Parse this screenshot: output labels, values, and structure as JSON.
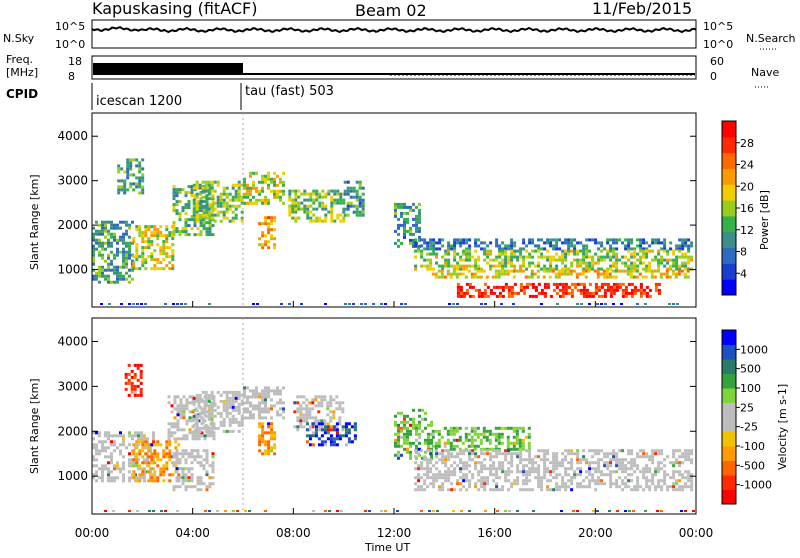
{
  "header": {
    "station": "Kapuskasing (fitACF)",
    "beam": "Beam 02",
    "date": "11/Feb/2015"
  },
  "nsky_panel": {
    "left_label": "N.Sky",
    "left_ticks": [
      "10^5",
      "10^0"
    ],
    "right_ticks": [
      "10^5",
      "10^0"
    ],
    "right_label": "N.Search"
  },
  "freq_panel": {
    "left_label_1": "Freq.",
    "left_label_2": "[MHz]",
    "left_ticks": [
      "18",
      "8"
    ],
    "right_ticks": [
      "60",
      "0"
    ],
    "right_label": "Nave"
  },
  "cpid": {
    "label": "CPID",
    "segments": [
      {
        "name": "icescan 1200",
        "start_hour": 0,
        "end_hour": 6
      },
      {
        "name": "tau (fast) 503",
        "start_hour": 6,
        "end_hour": 24
      }
    ]
  },
  "chart_data": [
    {
      "type": "heatmap",
      "name": "power",
      "ylabel": "Slant Range [km]",
      "ylim": [
        180,
        4500
      ],
      "y_ticks": [
        "1000",
        "2000",
        "3000",
        "4000"
      ],
      "xlabel": "Time UT",
      "x_ticks": [
        "00:00",
        "04:00",
        "08:00",
        "12:00",
        "16:00",
        "20:00",
        "00:00"
      ],
      "xlim_hours": [
        0,
        24
      ],
      "colorbar": {
        "label": "Power [dB]",
        "range": [
          0,
          30
        ],
        "ticks": [
          "4",
          "8",
          "12",
          "16",
          "20",
          "24",
          "28"
        ],
        "colors": [
          "#0000ff",
          "#1a3fd0",
          "#2f6bc0",
          "#3a8f8a",
          "#36b04a",
          "#9acc1c",
          "#f2cc00",
          "#fb9b00",
          "#ff6a00",
          "#ff2a00",
          "#ff0000"
        ]
      },
      "regions": [
        {
          "t": [
            0.0,
            1.6
          ],
          "r": [
            700,
            2100
          ],
          "level": 11
        },
        {
          "t": [
            1.0,
            2.0
          ],
          "r": [
            2700,
            3500
          ],
          "level": 12
        },
        {
          "t": [
            1.6,
            3.2
          ],
          "r": [
            1000,
            2000
          ],
          "level": 16
        },
        {
          "t": [
            3.2,
            4.8
          ],
          "r": [
            1800,
            2900
          ],
          "level": 13
        },
        {
          "t": [
            4.0,
            6.0
          ],
          "r": [
            2100,
            3000
          ],
          "level": 14
        },
        {
          "t": [
            6.0,
            7.6
          ],
          "r": [
            2500,
            3200
          ],
          "level": 16
        },
        {
          "t": [
            6.6,
            7.3
          ],
          "r": [
            1500,
            2200
          ],
          "level": 20
        },
        {
          "t": [
            7.8,
            10.0
          ],
          "r": [
            2100,
            2800
          ],
          "level": 14
        },
        {
          "t": [
            10.0,
            10.8
          ],
          "r": [
            2200,
            3000
          ],
          "level": 10
        },
        {
          "t": [
            12.0,
            13.0
          ],
          "r": [
            1500,
            2500
          ],
          "level": 10
        },
        {
          "t": [
            12.8,
            23.8
          ],
          "r": [
            1450,
            1700
          ],
          "level": 8
        },
        {
          "t": [
            12.8,
            23.8
          ],
          "r": [
            1000,
            1450
          ],
          "level": 15
        },
        {
          "t": [
            13.5,
            23.8
          ],
          "r": [
            800,
            1000
          ],
          "level": 18
        },
        {
          "t": [
            14.5,
            22.5
          ],
          "r": [
            400,
            700
          ],
          "level": 27
        }
      ]
    },
    {
      "type": "heatmap",
      "name": "velocity",
      "ylabel": "Slant Range [km]",
      "ylim": [
        180,
        4500
      ],
      "y_ticks": [
        "1000",
        "2000",
        "3000",
        "4000"
      ],
      "xlabel": "Time UT",
      "x_ticks": [
        "00:00",
        "04:00",
        "08:00",
        "12:00",
        "16:00",
        "20:00",
        "00:00"
      ],
      "xlim_hours": [
        0,
        24
      ],
      "colorbar": {
        "label": "Velocity [m s-1]",
        "ticks": [
          "1000",
          "500",
          "100",
          "25",
          "-25",
          "-100",
          "-500",
          "-1000"
        ],
        "colors": [
          "#0000ff",
          "#1c4fc0",
          "#2b7a6a",
          "#34a33e",
          "#7fd43a",
          "#bdbdbd",
          "#bdbdbd",
          "#f2c200",
          "#ff9a00",
          "#ff6400",
          "#ff2a00",
          "#ff0000"
        ]
      },
      "regions": [
        {
          "t": [
            0.0,
            2.4
          ],
          "r": [
            900,
            2000
          ],
          "level": "gray"
        },
        {
          "t": [
            1.3,
            2.0
          ],
          "r": [
            2800,
            3500
          ],
          "level": "red"
        },
        {
          "t": [
            1.6,
            3.4
          ],
          "r": [
            900,
            1800
          ],
          "level": "orange"
        },
        {
          "t": [
            3.2,
            4.8
          ],
          "r": [
            700,
            1600
          ],
          "level": "gray"
        },
        {
          "t": [
            3.0,
            4.8
          ],
          "r": [
            1800,
            2800
          ],
          "level": "gray"
        },
        {
          "t": [
            4.0,
            6.0
          ],
          "r": [
            2000,
            2900
          ],
          "level": "gray"
        },
        {
          "t": [
            6.0,
            7.6
          ],
          "r": [
            2300,
            3000
          ],
          "level": "gray"
        },
        {
          "t": [
            6.6,
            7.3
          ],
          "r": [
            1500,
            2200
          ],
          "level": "orange"
        },
        {
          "t": [
            8.0,
            10.0
          ],
          "r": [
            2000,
            2800
          ],
          "level": "gray"
        },
        {
          "t": [
            8.5,
            10.5
          ],
          "r": [
            1700,
            2200
          ],
          "level": "blue"
        },
        {
          "t": [
            12.0,
            13.5
          ],
          "r": [
            1400,
            2500
          ],
          "level": "green"
        },
        {
          "t": [
            13.5,
            17.5
          ],
          "r": [
            1600,
            2100
          ],
          "level": "green"
        },
        {
          "t": [
            12.8,
            23.8
          ],
          "r": [
            700,
            1600
          ],
          "level": "gray"
        }
      ]
    }
  ]
}
